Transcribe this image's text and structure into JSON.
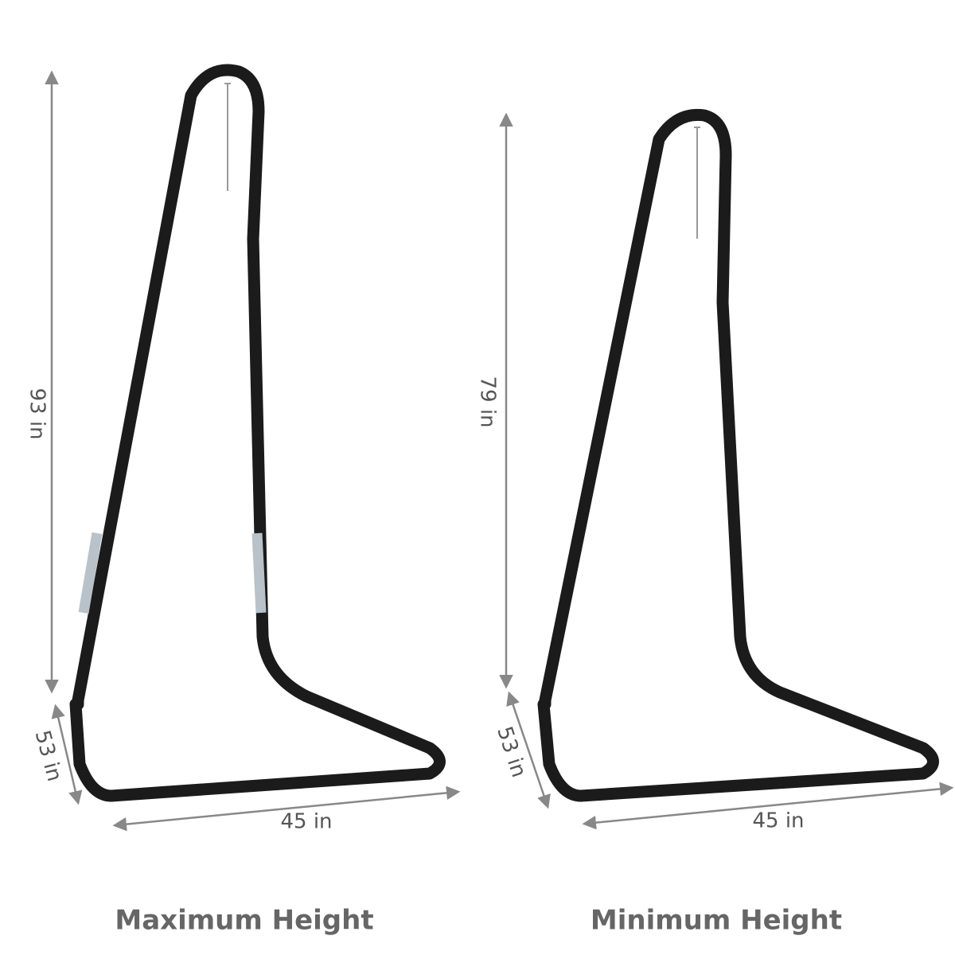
{
  "figures": [
    {
      "height": "93 in",
      "depth": "53 in",
      "width": "45 in",
      "caption": "Maximum Height"
    },
    {
      "height": "79 in",
      "depth": "53 in",
      "width": "45 in",
      "caption": "Minimum Height"
    }
  ]
}
